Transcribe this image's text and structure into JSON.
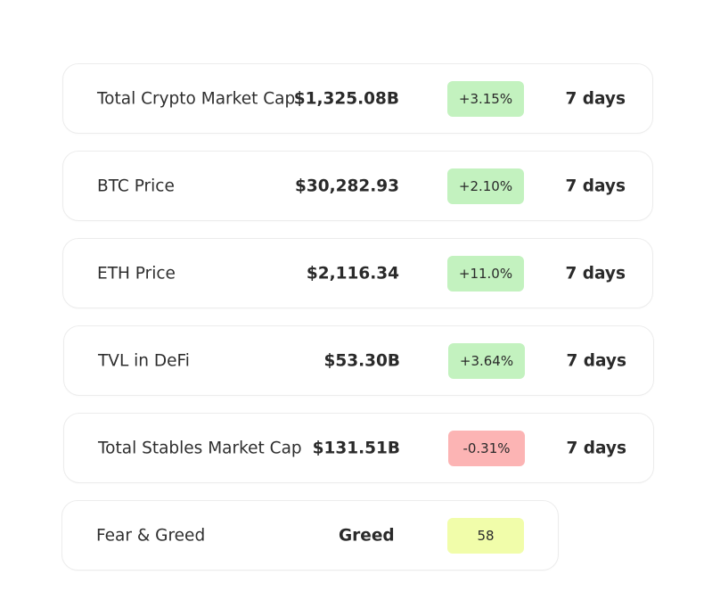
{
  "colors": {
    "positive_badge": "#c3f2bf",
    "negative_badge": "#fcb4b4",
    "neutral_badge": "#f1fdaa",
    "card_border": "#ececec"
  },
  "rows": [
    {
      "label": "Total Crypto Market Cap",
      "value": "$1,325.08B",
      "change": "+3.15%",
      "trend": "up",
      "period": "7 days"
    },
    {
      "label": "BTC Price",
      "value": "$30,282.93",
      "change": "+2.10%",
      "trend": "up",
      "period": "7 days"
    },
    {
      "label": "ETH Price",
      "value": "$2,116.34",
      "change": "+11.0%",
      "trend": "up",
      "period": "7 days"
    },
    {
      "label": "TVL in DeFi",
      "value": "$53.30B",
      "change": "+3.64%",
      "trend": "up",
      "period": "7 days"
    },
    {
      "label": "Total Stables Market Cap",
      "value": "$131.51B",
      "change": "-0.31%",
      "trend": "down",
      "period": "7 days"
    }
  ],
  "fear_greed": {
    "label": "Fear & Greed",
    "sentiment": "Greed",
    "score": "58"
  }
}
